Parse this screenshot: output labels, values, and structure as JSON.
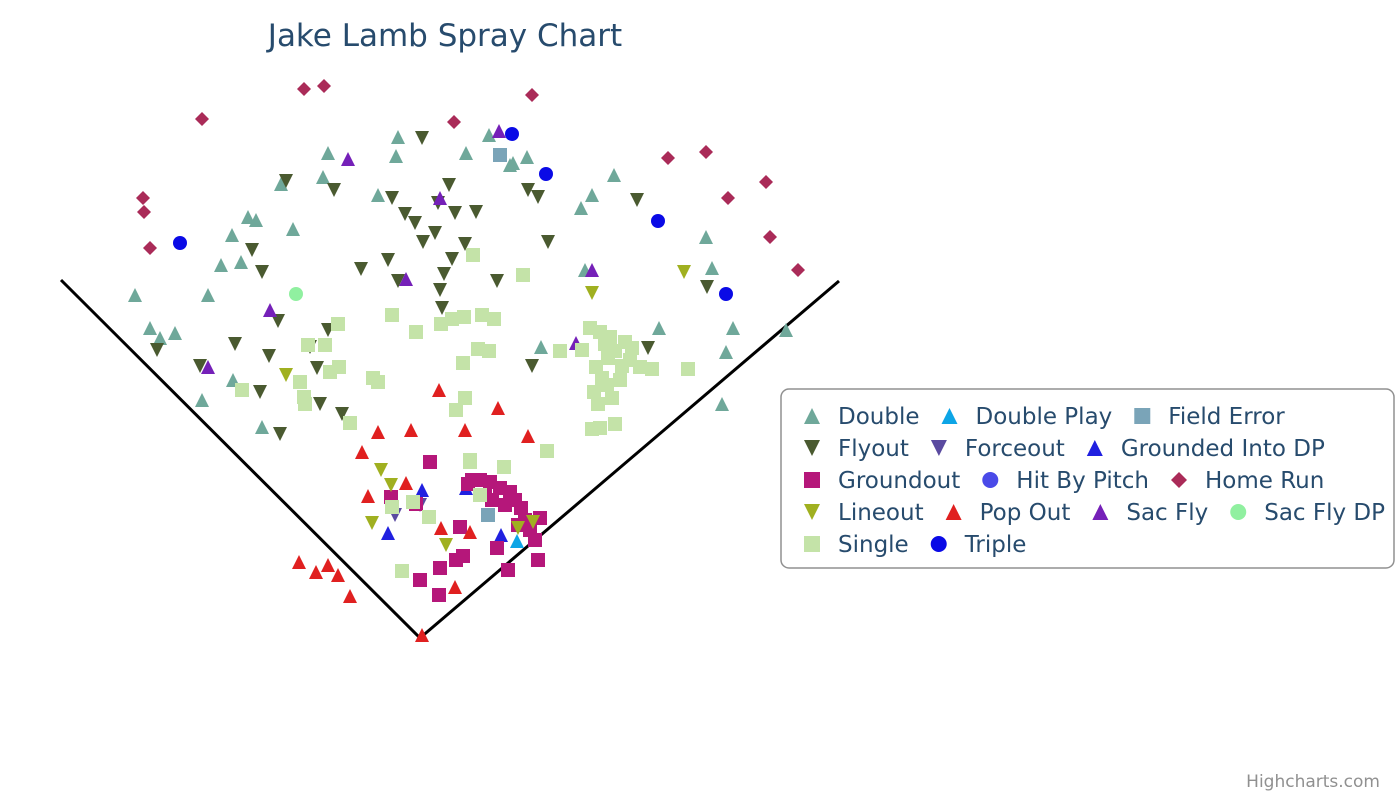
{
  "chart_data": {
    "type": "scatter",
    "title": "Jake Lamb Spray Chart",
    "credits": "Highcharts.com",
    "legend_position": "right",
    "grid": false,
    "series": [
      {
        "name": "Double",
        "color": "#6fa89a",
        "symbol": "triangle",
        "points": [
          [
            135,
            295
          ],
          [
            150,
            328
          ],
          [
            160,
            338
          ],
          [
            175,
            333
          ],
          [
            202,
            400
          ],
          [
            208,
            295
          ],
          [
            221,
            265
          ],
          [
            232,
            235
          ],
          [
            241,
            262
          ],
          [
            248,
            217
          ],
          [
            256,
            220
          ],
          [
            233,
            380
          ],
          [
            262,
            427
          ],
          [
            281,
            184
          ],
          [
            293,
            229
          ],
          [
            323,
            177
          ],
          [
            328,
            153
          ],
          [
            378,
            195
          ],
          [
            396,
            156
          ],
          [
            398,
            137
          ],
          [
            466,
            153
          ],
          [
            489,
            135
          ],
          [
            510,
            165
          ],
          [
            513,
            163
          ],
          [
            527,
            157
          ],
          [
            541,
            347
          ],
          [
            585,
            270
          ],
          [
            581,
            208
          ],
          [
            592,
            195
          ],
          [
            614,
            175
          ],
          [
            659,
            328
          ],
          [
            706,
            237
          ],
          [
            712,
            268
          ],
          [
            733,
            328
          ],
          [
            726,
            352
          ],
          [
            722,
            404
          ],
          [
            786,
            330
          ]
        ]
      },
      {
        "name": "Double Play",
        "color": "#0da5e6",
        "symbol": "triangle",
        "points": [
          [
            517,
            541
          ]
        ]
      },
      {
        "name": "Field Error",
        "color": "#7aa4b8",
        "symbol": "square",
        "points": [
          [
            500,
            155
          ],
          [
            488,
            515
          ]
        ]
      },
      {
        "name": "Flyout",
        "color": "#4a5a30",
        "symbol": "triangle-down",
        "points": [
          [
            157,
            350
          ],
          [
            200,
            366
          ],
          [
            235,
            344
          ],
          [
            252,
            250
          ],
          [
            262,
            272
          ],
          [
            260,
            392
          ],
          [
            269,
            356
          ],
          [
            278,
            321
          ],
          [
            280,
            434
          ],
          [
            286,
            181
          ],
          [
            310,
            347
          ],
          [
            317,
            368
          ],
          [
            320,
            404
          ],
          [
            328,
            330
          ],
          [
            334,
            190
          ],
          [
            342,
            414
          ],
          [
            361,
            269
          ],
          [
            388,
            260
          ],
          [
            392,
            198
          ],
          [
            398,
            281
          ],
          [
            405,
            214
          ],
          [
            415,
            223
          ],
          [
            422,
            138
          ],
          [
            423,
            242
          ],
          [
            435,
            233
          ],
          [
            438,
            203
          ],
          [
            440,
            290
          ],
          [
            442,
            308
          ],
          [
            444,
            274
          ],
          [
            449,
            185
          ],
          [
            452,
            259
          ],
          [
            455,
            213
          ],
          [
            465,
            244
          ],
          [
            476,
            212
          ],
          [
            497,
            281
          ],
          [
            528,
            190
          ],
          [
            538,
            197
          ],
          [
            548,
            242
          ],
          [
            532,
            366
          ],
          [
            637,
            200
          ],
          [
            648,
            348
          ],
          [
            707,
            287
          ]
        ]
      },
      {
        "name": "Forceout",
        "color": "#5a4aa0",
        "symbol": "triangle-down",
        "points": [
          [
            395,
            515
          ],
          [
            420,
            505
          ]
        ]
      },
      {
        "name": "Grounded Into DP",
        "color": "#2020e0",
        "symbol": "triangle",
        "points": [
          [
            388,
            533
          ],
          [
            422,
            490
          ],
          [
            466,
            488
          ],
          [
            501,
            535
          ]
        ]
      },
      {
        "name": "Groundout",
        "color": "#b5177a",
        "symbol": "square",
        "points": [
          [
            391,
            497
          ],
          [
            416,
            504
          ],
          [
            430,
            462
          ],
          [
            420,
            580
          ],
          [
            439,
            595
          ],
          [
            440,
            568
          ],
          [
            456,
            560
          ],
          [
            460,
            527
          ],
          [
            463,
            556
          ],
          [
            468,
            484
          ],
          [
            472,
            480
          ],
          [
            480,
            480
          ],
          [
            485,
            495
          ],
          [
            490,
            482
          ],
          [
            492,
            500
          ],
          [
            497,
            548
          ],
          [
            500,
            488
          ],
          [
            505,
            505
          ],
          [
            508,
            570
          ],
          [
            510,
            492
          ],
          [
            515,
            500
          ],
          [
            518,
            525
          ],
          [
            521,
            508
          ],
          [
            525,
            520
          ],
          [
            530,
            530
          ],
          [
            535,
            540
          ],
          [
            538,
            560
          ],
          [
            540,
            518
          ]
        ]
      },
      {
        "name": "Hit By Pitch",
        "color": "#4a4ae8",
        "symbol": "circle",
        "points": []
      },
      {
        "name": "Home Run",
        "color": "#aa2b58",
        "symbol": "diamond",
        "points": [
          [
            143,
            198
          ],
          [
            144,
            212
          ],
          [
            150,
            248
          ],
          [
            202,
            119
          ],
          [
            304,
            89
          ],
          [
            324,
            86
          ],
          [
            454,
            122
          ],
          [
            532,
            95
          ],
          [
            668,
            158
          ],
          [
            706,
            152
          ],
          [
            728,
            198
          ],
          [
            766,
            182
          ],
          [
            770,
            237
          ],
          [
            798,
            270
          ]
        ]
      },
      {
        "name": "Lineout",
        "color": "#a0b020",
        "symbol": "triangle-down",
        "points": [
          [
            286,
            375
          ],
          [
            372,
            523
          ],
          [
            381,
            470
          ],
          [
            391,
            485
          ],
          [
            446,
            545
          ],
          [
            518,
            528
          ],
          [
            533,
            522
          ],
          [
            592,
            293
          ],
          [
            684,
            272
          ]
        ]
      },
      {
        "name": "Pop Out",
        "color": "#e02020",
        "symbol": "triangle",
        "points": [
          [
            299,
            562
          ],
          [
            316,
            572
          ],
          [
            328,
            565
          ],
          [
            338,
            575
          ],
          [
            350,
            596
          ],
          [
            362,
            452
          ],
          [
            368,
            496
          ],
          [
            378,
            432
          ],
          [
            406,
            483
          ],
          [
            411,
            430
          ],
          [
            422,
            635
          ],
          [
            439,
            390
          ],
          [
            441,
            528
          ],
          [
            455,
            587
          ],
          [
            465,
            430
          ],
          [
            470,
            532
          ],
          [
            498,
            408
          ],
          [
            528,
            436
          ]
        ]
      },
      {
        "name": "Sac Fly",
        "color": "#7520b8",
        "symbol": "triangle",
        "points": [
          [
            208,
            367
          ],
          [
            270,
            310
          ],
          [
            348,
            159
          ],
          [
            406,
            279
          ],
          [
            440,
            198
          ],
          [
            499,
            131
          ],
          [
            576,
            343
          ],
          [
            592,
            270
          ]
        ]
      },
      {
        "name": "Sac Fly DP",
        "color": "#90f0a0",
        "symbol": "circle",
        "points": [
          [
            296,
            294
          ]
        ]
      },
      {
        "name": "Single",
        "color": "#c4e3a8",
        "symbol": "square",
        "points": [
          [
            242,
            390
          ],
          [
            300,
            382
          ],
          [
            304,
            397
          ],
          [
            305,
            404
          ],
          [
            308,
            345
          ],
          [
            325,
            345
          ],
          [
            330,
            372
          ],
          [
            338,
            324
          ],
          [
            339,
            367
          ],
          [
            350,
            423
          ],
          [
            373,
            378
          ],
          [
            378,
            382
          ],
          [
            392,
            315
          ],
          [
            392,
            507
          ],
          [
            402,
            571
          ],
          [
            413,
            502
          ],
          [
            416,
            332
          ],
          [
            429,
            517
          ],
          [
            441,
            324
          ],
          [
            452,
            319
          ],
          [
            456,
            410
          ],
          [
            463,
            363
          ],
          [
            464,
            317
          ],
          [
            465,
            398
          ],
          [
            470,
            460
          ],
          [
            473,
            255
          ],
          [
            478,
            349
          ],
          [
            480,
            495
          ],
          [
            482,
            315
          ],
          [
            489,
            351
          ],
          [
            494,
            319
          ],
          [
            504,
            467
          ],
          [
            523,
            275
          ],
          [
            547,
            451
          ],
          [
            560,
            351
          ],
          [
            582,
            350
          ],
          [
            590,
            328
          ],
          [
            594,
            392
          ],
          [
            596,
            367
          ],
          [
            598,
            404
          ],
          [
            600,
            332
          ],
          [
            602,
            378
          ],
          [
            605,
            344
          ],
          [
            607,
            385
          ],
          [
            608,
            358
          ],
          [
            610,
            337
          ],
          [
            612,
            398
          ],
          [
            615,
            351
          ],
          [
            620,
            380
          ],
          [
            622,
            366
          ],
          [
            625,
            342
          ],
          [
            630,
            360
          ],
          [
            632,
            348
          ],
          [
            640,
            367
          ],
          [
            652,
            369
          ],
          [
            688,
            369
          ],
          [
            592,
            429
          ],
          [
            600,
            428
          ],
          [
            615,
            424
          ],
          [
            470,
            462
          ]
        ]
      },
      {
        "name": "Triple",
        "color": "#0a0ae6",
        "symbol": "circle",
        "points": [
          [
            180,
            243
          ],
          [
            512,
            134
          ],
          [
            546,
            174
          ],
          [
            658,
            221
          ],
          [
            726,
            294
          ]
        ]
      }
    ],
    "legend": [
      [
        "Double",
        "Double Play",
        "Field Error"
      ],
      [
        "Flyout",
        "Forceout",
        "Grounded Into DP"
      ],
      [
        "Groundout",
        "Hit By Pitch",
        "Home Run"
      ],
      [
        "Lineout",
        "Pop Out",
        "Sac Fly",
        "Sac Fly DP"
      ],
      [
        "Single",
        "Triple"
      ]
    ]
  }
}
